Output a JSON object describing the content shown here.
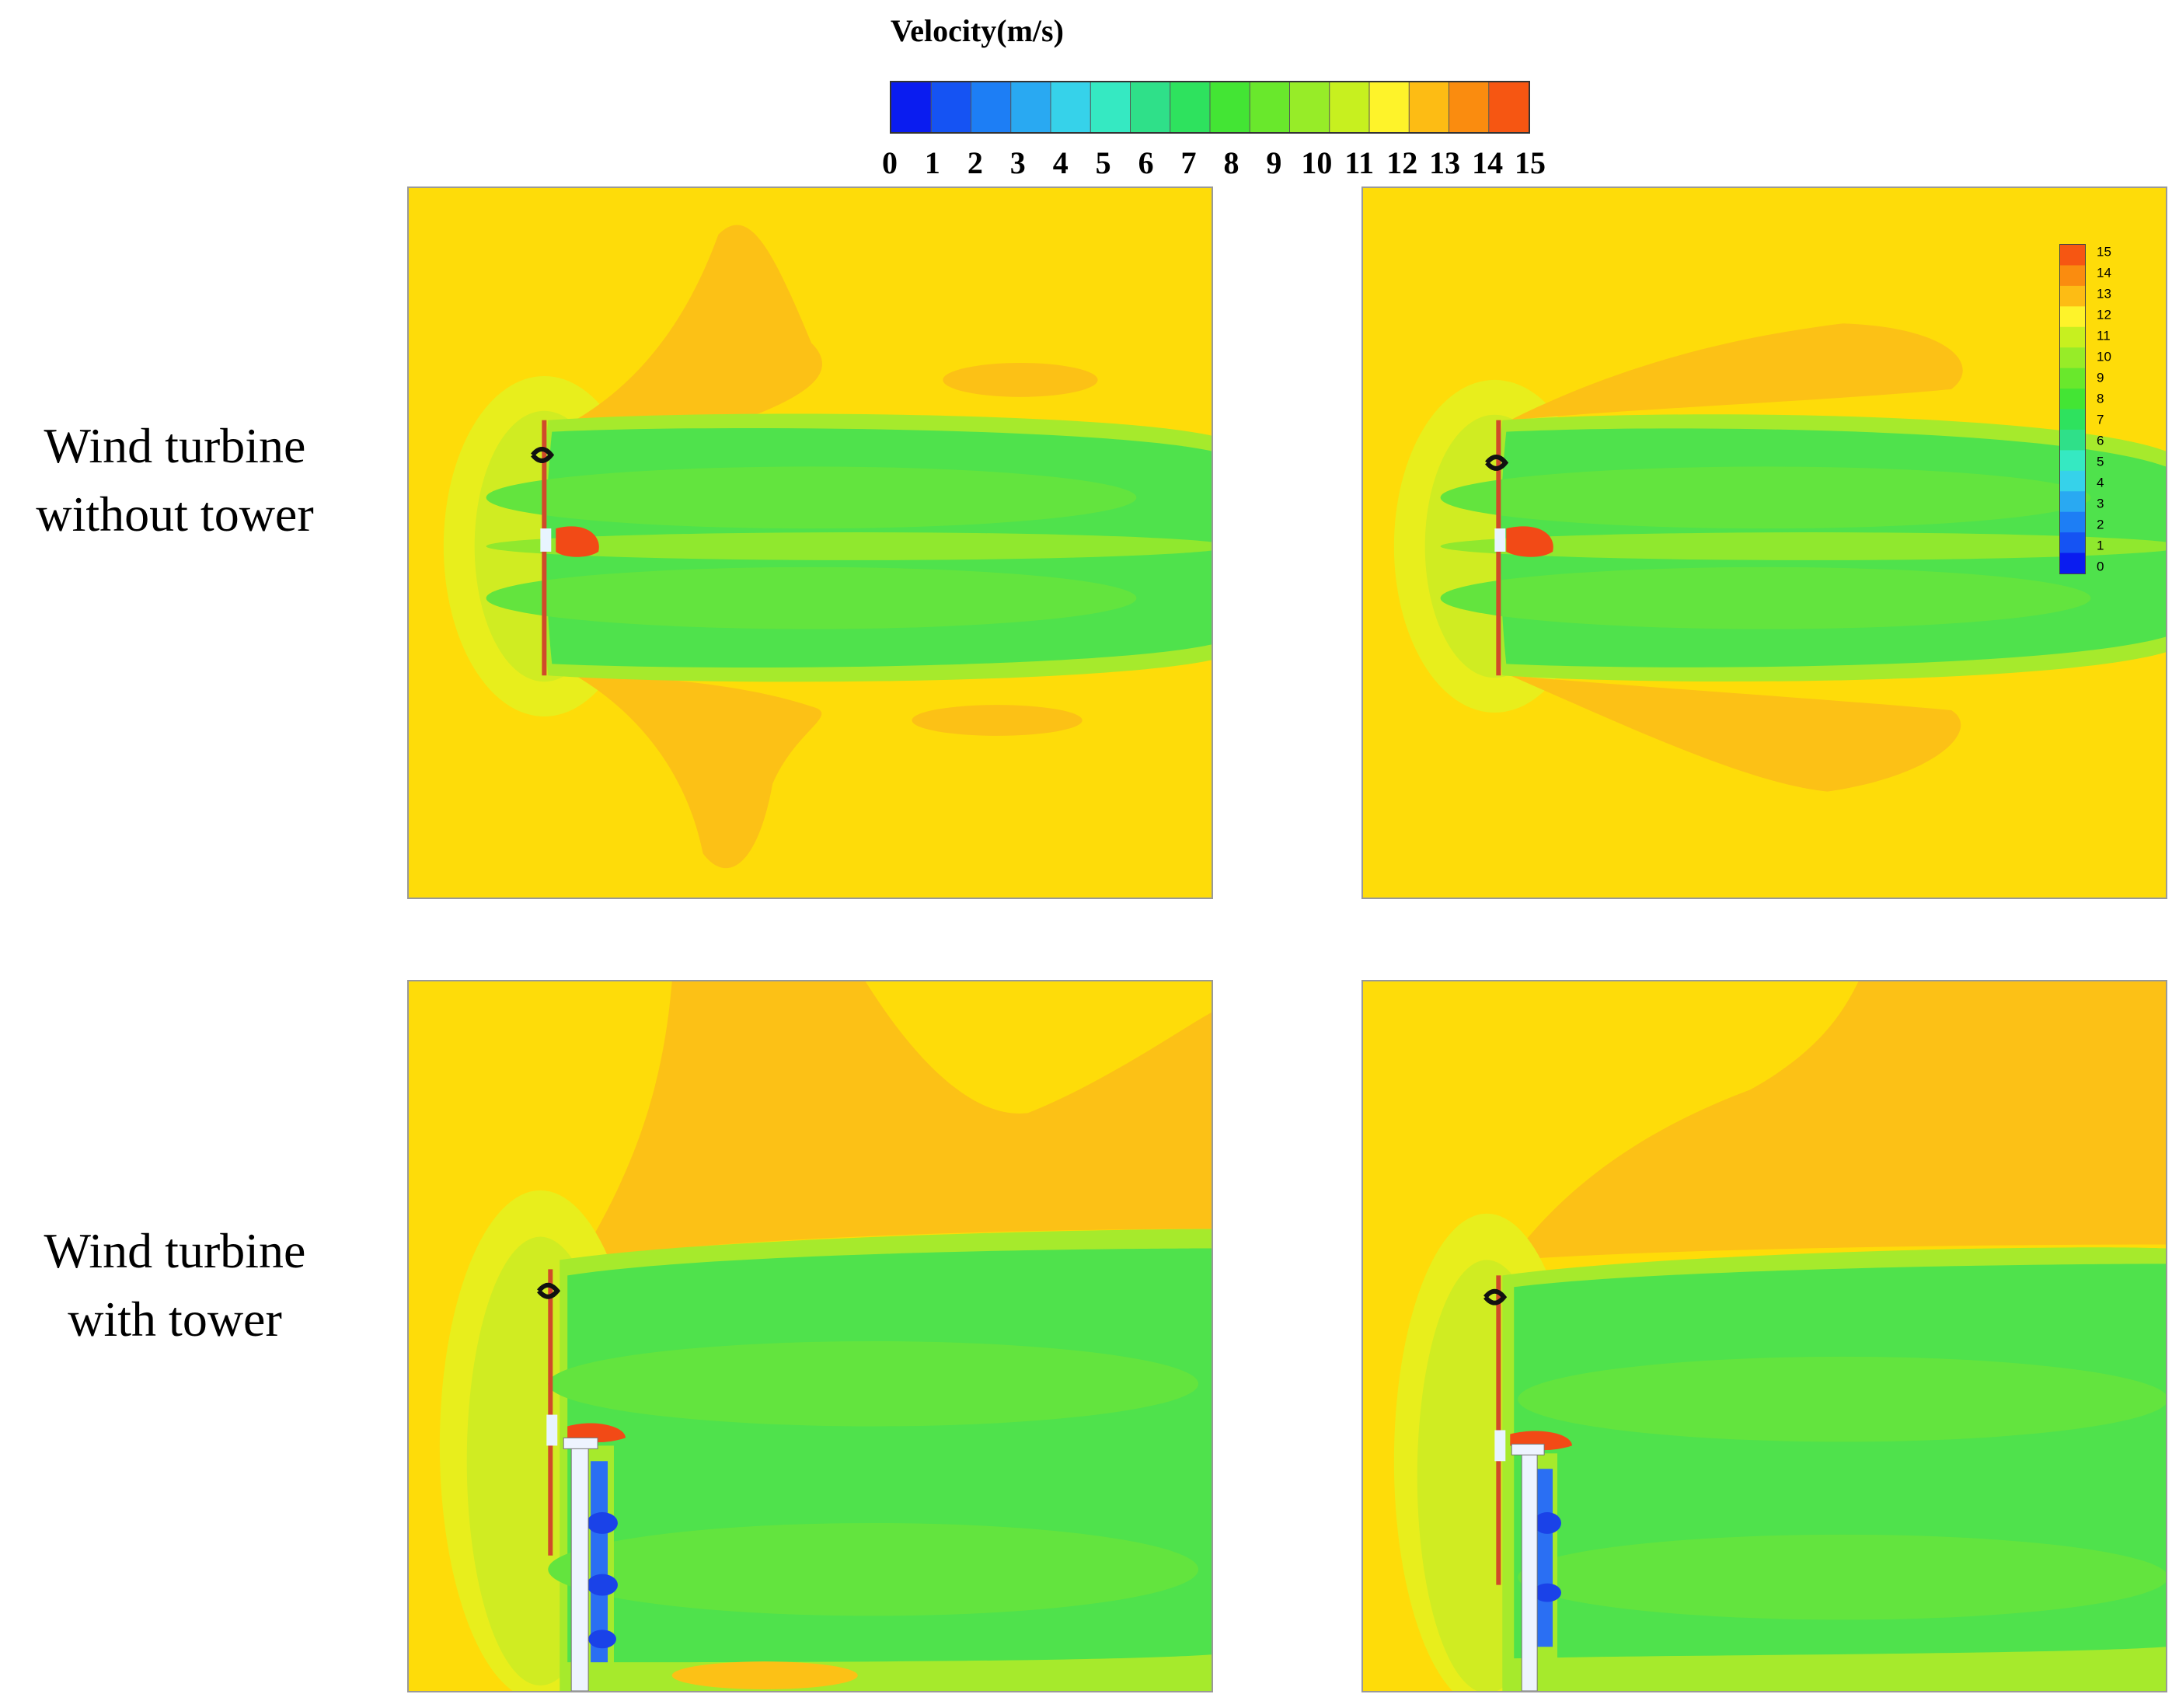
{
  "colorbar": {
    "title": "Velocity(m/s)",
    "ticks": [
      "0",
      "1",
      "2",
      "3",
      "4",
      "5",
      "6",
      "7",
      "8",
      "9",
      "10",
      "11",
      "12",
      "13",
      "14",
      "15"
    ],
    "colors": [
      "#0a1cf0",
      "#1553f3",
      "#1d7ef5",
      "#29a9f2",
      "#36d2ea",
      "#35e9c2",
      "#2fe089",
      "#2ee25e",
      "#43e534",
      "#69e82c",
      "#97ec28",
      "#c7f01f",
      "#fef32a",
      "#fdbc14",
      "#fa8c0f",
      "#f65612"
    ]
  },
  "rows": [
    {
      "line1": "Wind turbine",
      "line2": "without tower"
    },
    {
      "line1": "Wind turbine",
      "line2": "with tower"
    }
  ],
  "mini_legend": {
    "ticks": [
      "15",
      "14",
      "13",
      "12",
      "11",
      "10",
      "9",
      "8",
      "7",
      "6",
      "5",
      "4",
      "3",
      "2",
      "1",
      "0"
    ]
  },
  "field_colors": {
    "freestream": "#fedc09",
    "speedup": "#fcc116",
    "wake_core": "#4fe24c",
    "wake_edge": "#a6ea2c",
    "induction": "#d8ee22",
    "low_speed": "#2a6ff3",
    "high_speed": "#f24a16"
  }
}
